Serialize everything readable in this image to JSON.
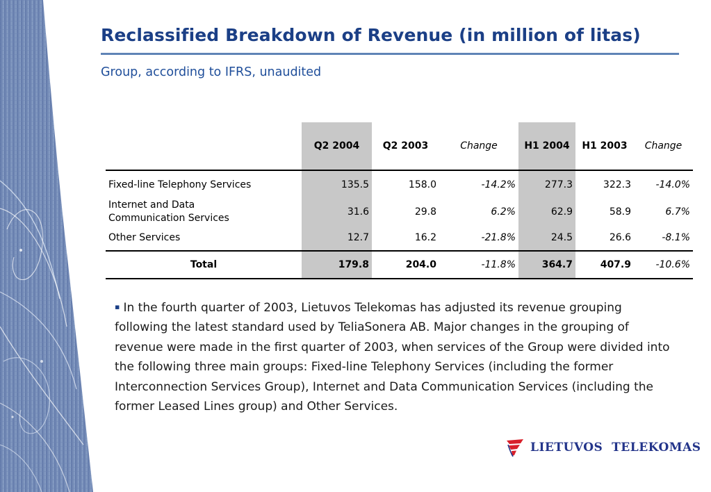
{
  "header": {
    "title": "Reclassified Breakdown of Revenue (in million of litas)",
    "subtitle": "Group, according to IFRS, unaudited"
  },
  "table": {
    "columns": [
      "Q2 2004",
      "Q2 2003",
      "Change",
      "H1 2004",
      "H1 2003",
      "Change"
    ],
    "rows": [
      {
        "label": "Fixed-line Telephony Services",
        "values": [
          "135.5",
          "158.0",
          "-14.2%",
          "277.3",
          "322.3",
          "-14.0%"
        ]
      },
      {
        "label_line1": "Internet and Data",
        "label_line2": "Communication Services",
        "values": [
          "31.6",
          "29.8",
          "6.2%",
          "62.9",
          "58.9",
          "6.7%"
        ]
      },
      {
        "label": "Other Services",
        "values": [
          "12.7",
          "16.2",
          "-21.8%",
          "24.5",
          "26.6",
          "-8.1%"
        ]
      }
    ],
    "total": {
      "label": "Total",
      "values": [
        "179.8",
        "204.0",
        "-11.8%",
        "364.7",
        "407.9",
        "-10.6%"
      ]
    }
  },
  "note": {
    "bullet": "▪",
    "text": "In the fourth quarter of 2003, Lietuvos Telekomas has adjusted its revenue grouping following the latest standard used by TeliaSonera AB. Major changes in the grouping of revenue were made in the first quarter of 2003, when services of the Group were divided into the following three main groups: Fixed-line Telephony Services (including the former Interconnection Services Group), Internet and Data Communication Services (including the former Leased Lines group) and Other Services."
  },
  "logo": {
    "text": "LIETUVOS  TELEKOMAS"
  },
  "colors": {
    "title": "#1b3f86",
    "subtitle": "#1f4e9a",
    "rule": "#5f84b6",
    "shaded_column": "#c8c8c8",
    "logo_red": "#d8202a",
    "logo_blue": "#23348a"
  }
}
